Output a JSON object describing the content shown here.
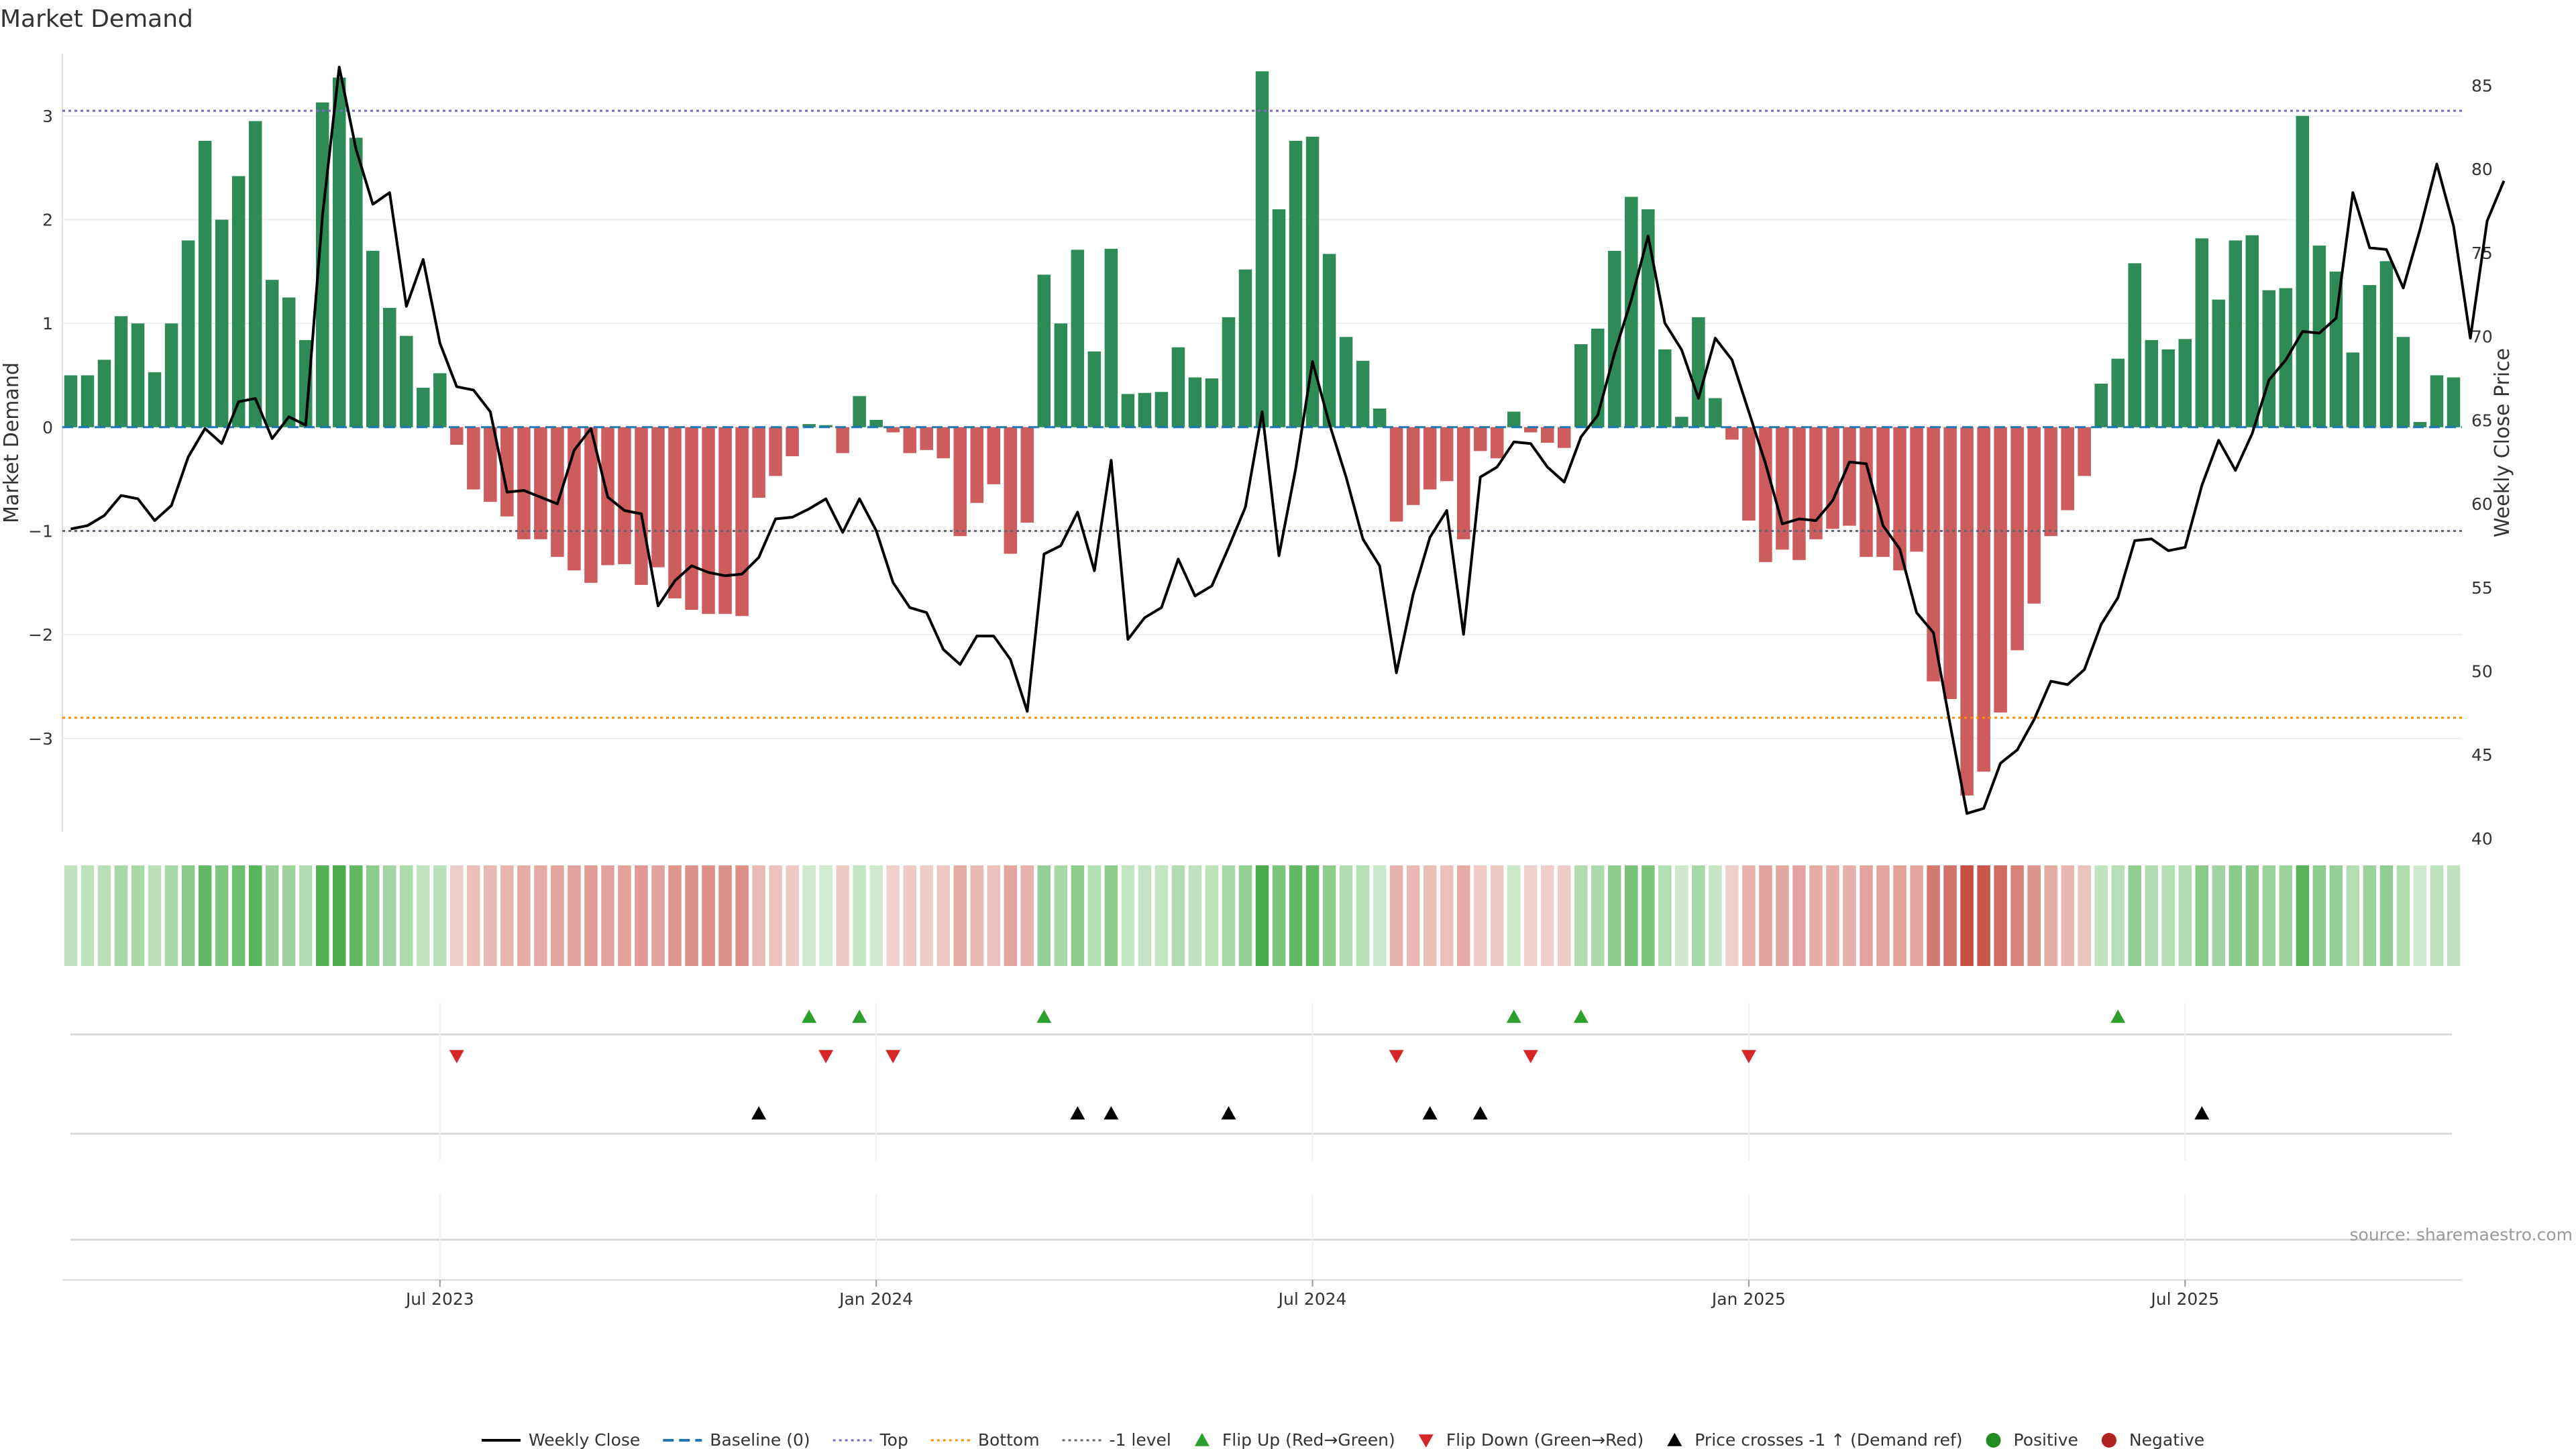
{
  "chart_data": {
    "type": "bar",
    "title": "Market Demand",
    "ylabel": "Market Demand",
    "y2label": "Weekly Close Price",
    "ylim": [
      -3.9,
      3.6
    ],
    "y2lim": [
      40.4,
      86.9
    ],
    "yticks": [
      "3",
      "2",
      "1",
      "0",
      "−1",
      "−2",
      "−3"
    ],
    "ytick_values": [
      3,
      2,
      1,
      0,
      -1,
      -2,
      -3
    ],
    "y2ticks": [
      "85",
      "80",
      "75",
      "70",
      "65",
      "60",
      "55",
      "50",
      "45",
      "40"
    ],
    "y2tick_values": [
      85,
      80,
      75,
      70,
      65,
      60,
      55,
      50,
      45,
      40
    ],
    "xticks": [
      "Jul 2023",
      "Jan 2024",
      "Jul 2024",
      "Jan 2025",
      "Jul 2025"
    ],
    "xtick_weeks": [
      22,
      48,
      74,
      100,
      126
    ],
    "levels": {
      "top": {
        "value": 3.05,
        "color": "#7b68c4"
      },
      "bottom": {
        "value": -2.8,
        "color": "#ff8c00"
      },
      "minus_one": {
        "value": -1,
        "color": "#666677"
      },
      "baseline": {
        "value": 0,
        "color": "#1f77b4"
      }
    },
    "colors": {
      "positive_bar": "#2e8b57",
      "negative_bar": "#cd5c5c",
      "price_line": "#000000",
      "flip_up": "#2ca02c",
      "flip_down": "#d62728",
      "price_cross": "#000000"
    },
    "demand": [
      0.5,
      0.5,
      0.65,
      1.07,
      1.0,
      0.53,
      1.0,
      1.8,
      2.76,
      2.0,
      2.42,
      2.95,
      1.42,
      1.25,
      0.84,
      3.13,
      3.37,
      2.79,
      1.7,
      1.15,
      0.88,
      0.38,
      0.52,
      -0.17,
      -0.6,
      -0.72,
      -0.86,
      -1.08,
      -1.08,
      -1.25,
      -1.38,
      -1.5,
      -1.33,
      -1.32,
      -1.52,
      -1.35,
      -1.65,
      -1.76,
      -1.8,
      -1.8,
      -1.82,
      -0.68,
      -0.47,
      -0.28,
      0.03,
      0.02,
      -0.25,
      0.3,
      0.07,
      -0.05,
      -0.25,
      -0.22,
      -0.3,
      -1.05,
      -0.73,
      -0.55,
      -1.22,
      -0.92,
      1.47,
      1.0,
      1.71,
      0.73,
      1.72,
      0.32,
      0.33,
      0.34,
      0.77,
      0.48,
      0.47,
      1.06,
      1.52,
      3.43,
      2.1,
      2.76,
      2.8,
      1.67,
      0.87,
      0.64,
      0.18,
      -0.91,
      -0.75,
      -0.6,
      -0.52,
      -1.08,
      -0.23,
      -0.3,
      0.15,
      -0.05,
      -0.15,
      -0.2,
      0.8,
      0.95,
      1.7,
      2.22,
      2.1,
      0.75,
      0.1,
      1.06,
      0.28,
      -0.12,
      -0.9,
      -1.3,
      -1.18,
      -1.28,
      -1.08,
      -0.98,
      -0.95,
      -1.25,
      -1.25,
      -1.38,
      -1.2,
      -2.45,
      -2.62,
      -3.55,
      -3.32,
      -2.75,
      -2.15,
      -1.7,
      -1.05,
      -0.8,
      -0.47,
      0.42,
      0.66,
      1.58,
      0.84,
      0.75,
      0.85,
      1.82,
      1.23,
      1.8,
      1.85,
      1.32,
      1.34,
      3.0,
      1.75,
      1.5,
      0.72,
      1.37,
      1.6,
      0.87,
      0.05,
      0.5,
      0.48
    ],
    "close": [
      58.5,
      58.7,
      59.3,
      60.5,
      60.3,
      59.0,
      59.9,
      62.8,
      64.5,
      63.6,
      66.1,
      66.3,
      63.9,
      65.2,
      64.7,
      77.2,
      86.1,
      81.2,
      77.9,
      78.6,
      71.8,
      74.6,
      69.6,
      67.0,
      66.8,
      65.5,
      60.7,
      60.8,
      60.4,
      60.0,
      63.2,
      64.5,
      60.4,
      59.6,
      59.4,
      53.9,
      55.4,
      56.3,
      55.9,
      55.7,
      55.8,
      56.8,
      59.1,
      59.2,
      59.7,
      60.3,
      58.3,
      60.3,
      58.4,
      55.3,
      53.8,
      53.5,
      51.3,
      50.4,
      52.1,
      52.1,
      50.7,
      47.6,
      57.0,
      57.5,
      59.5,
      56.0,
      62.6,
      51.9,
      53.2,
      53.8,
      56.7,
      54.5,
      55.1,
      57.4,
      59.8,
      65.5,
      56.9,
      62.1,
      68.5,
      64.8,
      61.6,
      57.9,
      56.3,
      49.9,
      54.6,
      58.0,
      59.6,
      52.2,
      61.6,
      62.2,
      63.7,
      63.6,
      62.2,
      61.3,
      64.0,
      65.3,
      69.0,
      72.2,
      76.0,
      70.8,
      69.2,
      66.3,
      69.9,
      68.6,
      65.5,
      62.4,
      58.8,
      59.1,
      59.0,
      60.2,
      62.5,
      62.4,
      58.7,
      57.3,
      53.5,
      52.3,
      46.8,
      41.5,
      41.8,
      44.5,
      45.3,
      47.1,
      49.4,
      49.2,
      50.1,
      52.8,
      54.4,
      57.8,
      57.9,
      57.2,
      57.4,
      61.1,
      63.8,
      62.0,
      64.2,
      67.4,
      68.6,
      70.3,
      70.2,
      71.1,
      78.6,
      75.3,
      75.2,
      72.9,
      76.4,
      80.3,
      76.6,
      69.9,
      76.9,
      79.3
    ],
    "flip_up_weeks": [
      44,
      47,
      58,
      86,
      90,
      122
    ],
    "flip_down_weeks": [
      23,
      45,
      49,
      79,
      87,
      100
    ],
    "price_cross_weeks": [
      41,
      60,
      62,
      69,
      81,
      84,
      127
    ]
  },
  "legend": [
    {
      "label": "Weekly Close",
      "marker": "line",
      "color": "#000000"
    },
    {
      "label": "Baseline (0)",
      "marker": "dash",
      "color": "#1f77b4"
    },
    {
      "label": "Top",
      "marker": "dot",
      "color": "#7b68c4"
    },
    {
      "label": "Bottom",
      "marker": "dot",
      "color": "#ff8c00"
    },
    {
      "label": "-1 level",
      "marker": "dot",
      "color": "#666677"
    },
    {
      "label": "Flip Up (Red→Green)",
      "marker": "triangle-up",
      "color": "#2ca02c"
    },
    {
      "label": "Flip Down (Green→Red)",
      "marker": "triangle-down",
      "color": "#d62728"
    },
    {
      "label": "Price crosses -1 ↑ (Demand ref)",
      "marker": "triangle-up",
      "color": "#000000"
    },
    {
      "label": "Positive",
      "marker": "circle",
      "color": "#228b22"
    },
    {
      "label": "Negative",
      "marker": "circle",
      "color": "#b22222"
    }
  ],
  "source": "source: sharemaestro.com"
}
